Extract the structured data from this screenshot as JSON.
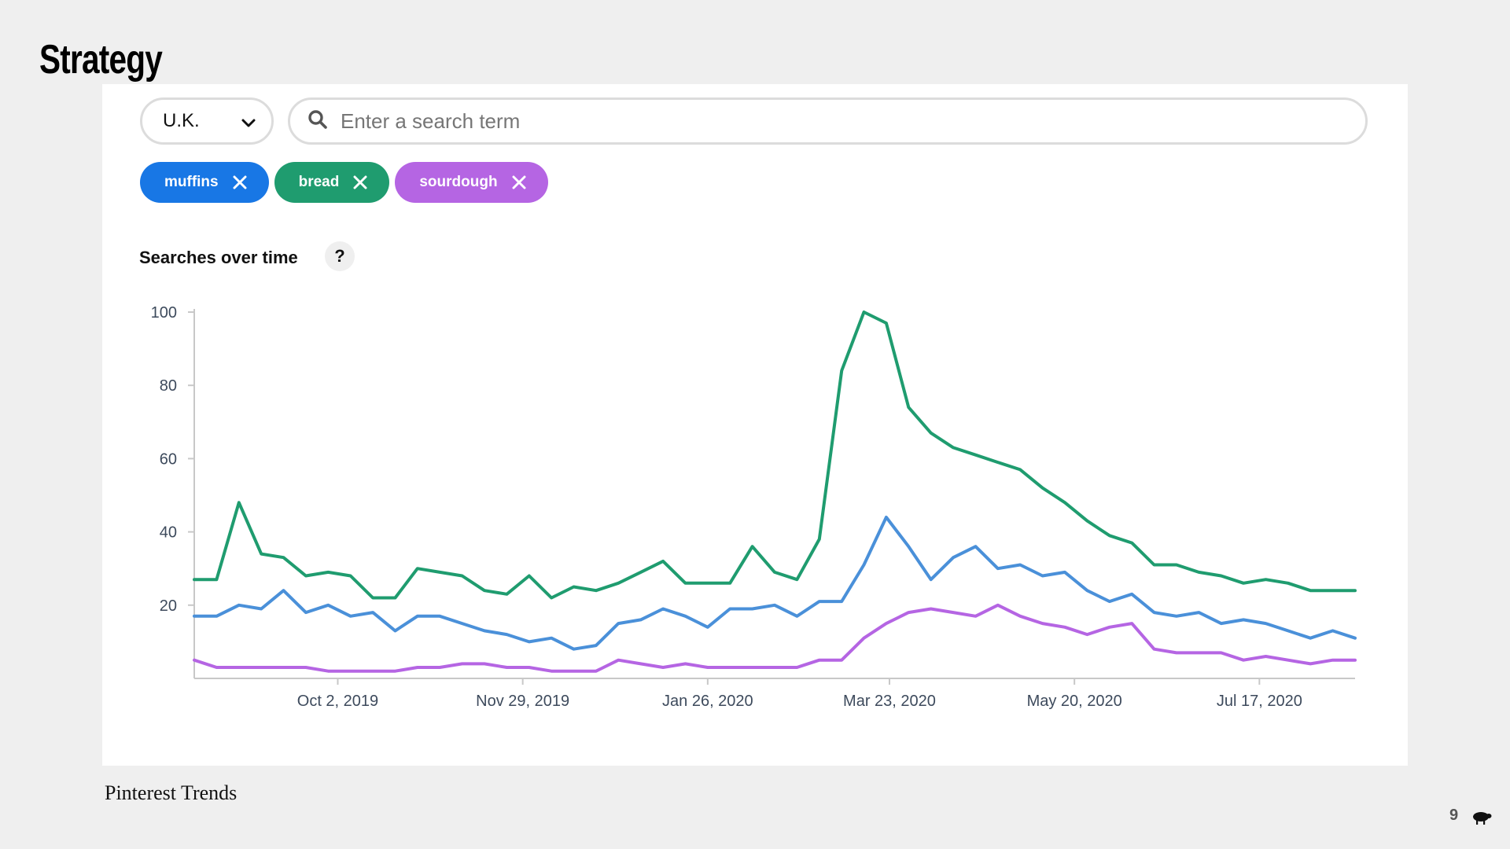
{
  "slide": {
    "title": "Strategy",
    "source": "Pinterest Trends",
    "page_number": "9"
  },
  "filters": {
    "region": "U.K.",
    "search_placeholder": "Enter a search term",
    "chips": [
      {
        "label": "muffins",
        "color": "#1877e5"
      },
      {
        "label": "bread",
        "color": "#1f9c6f"
      },
      {
        "label": "sourdough",
        "color": "#b565e3"
      }
    ]
  },
  "section": {
    "title": "Searches over time",
    "help": "?"
  },
  "chart_data": {
    "type": "line",
    "y_ticks": [
      20,
      40,
      60,
      80,
      100
    ],
    "ylim": [
      0,
      100
    ],
    "x_ticks": [
      "Oct 2, 2019",
      "Nov 29, 2019",
      "Jan 26, 2020",
      "Mar 23, 2020",
      "May 20, 2020",
      "Jul 17, 2020"
    ],
    "x": [
      "2019-08-18",
      "2019-08-25",
      "2019-09-01",
      "2019-09-08",
      "2019-09-15",
      "2019-09-22",
      "2019-09-29",
      "2019-10-06",
      "2019-10-13",
      "2019-10-20",
      "2019-10-27",
      "2019-11-03",
      "2019-11-10",
      "2019-11-17",
      "2019-11-24",
      "2019-12-01",
      "2019-12-08",
      "2019-12-15",
      "2019-12-22",
      "2019-12-29",
      "2020-01-05",
      "2020-01-12",
      "2020-01-19",
      "2020-01-26",
      "2020-02-02",
      "2020-02-09",
      "2020-02-16",
      "2020-02-23",
      "2020-03-01",
      "2020-03-08",
      "2020-03-15",
      "2020-03-22",
      "2020-03-29",
      "2020-04-05",
      "2020-04-12",
      "2020-04-19",
      "2020-04-26",
      "2020-05-03",
      "2020-05-10",
      "2020-05-17",
      "2020-05-24",
      "2020-05-31",
      "2020-06-07",
      "2020-06-14",
      "2020-06-21",
      "2020-06-28",
      "2020-07-05",
      "2020-07-12",
      "2020-07-19",
      "2020-07-26",
      "2020-08-02",
      "2020-08-09",
      "2020-08-16"
    ],
    "series": [
      {
        "name": "muffins",
        "color": "#4a90d9",
        "values": [
          17,
          17,
          20,
          19,
          24,
          18,
          20,
          17,
          18,
          13,
          17,
          17,
          15,
          13,
          12,
          10,
          11,
          8,
          9,
          15,
          16,
          19,
          17,
          14,
          19,
          19,
          20,
          17,
          21,
          21,
          31,
          44,
          36,
          27,
          33,
          36,
          30,
          31,
          28,
          29,
          24,
          21,
          23,
          18,
          17,
          18,
          15,
          16,
          15,
          13,
          11,
          13,
          11
        ]
      },
      {
        "name": "bread",
        "color": "#1f9c6f",
        "values": [
          27,
          27,
          48,
          34,
          33,
          28,
          29,
          28,
          22,
          22,
          30,
          29,
          28,
          24,
          23,
          28,
          22,
          25,
          24,
          26,
          29,
          32,
          26,
          26,
          26,
          36,
          29,
          27,
          38,
          84,
          100,
          97,
          74,
          67,
          63,
          61,
          59,
          57,
          52,
          48,
          43,
          39,
          37,
          31,
          31,
          29,
          28,
          26,
          27,
          26,
          24,
          24,
          24
        ]
      },
      {
        "name": "sourdough",
        "color": "#b565e3",
        "values": [
          5,
          3,
          3,
          3,
          3,
          3,
          2,
          2,
          2,
          2,
          3,
          3,
          4,
          4,
          3,
          3,
          2,
          2,
          2,
          5,
          4,
          3,
          4,
          3,
          3,
          3,
          3,
          3,
          5,
          5,
          11,
          15,
          18,
          19,
          18,
          17,
          20,
          17,
          15,
          14,
          12,
          14,
          15,
          8,
          7,
          7,
          7,
          5,
          6,
          5,
          4,
          5,
          5
        ]
      }
    ]
  }
}
